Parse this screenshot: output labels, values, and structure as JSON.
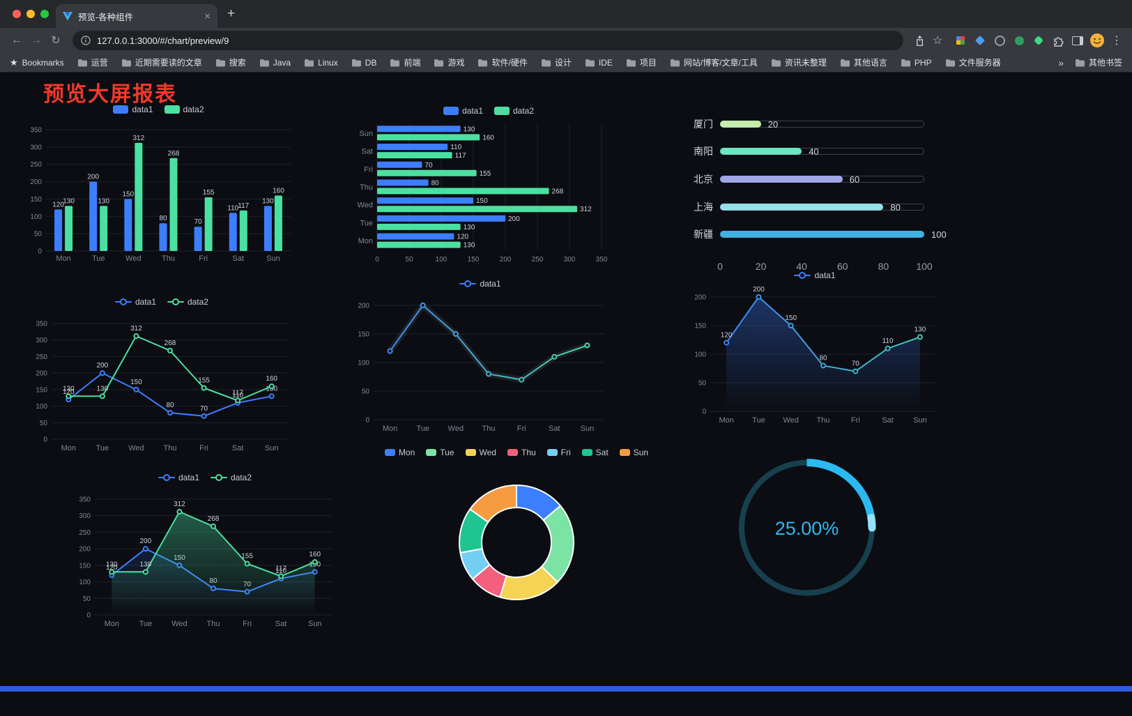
{
  "browser": {
    "tab": {
      "title": "预览-各种组件",
      "close_glyph": "×"
    },
    "url": "127.0.0.1:3000/#/chart/preview/9",
    "toolbar": {
      "back": "←",
      "forward": "→",
      "reload": "↻",
      "star": "☆",
      "kebab": "⋮",
      "new_tab": "+"
    },
    "bookmarks_label": "Bookmarks",
    "bookmarks": [
      "运营",
      "近期需要读的文章",
      "搜索",
      "Java",
      "Linux",
      "DB",
      "前端",
      "游戏",
      "软件/硬件",
      "设计",
      "IDE",
      "项目",
      "网站/博客/文章/工具",
      "资讯未整理",
      "其他语言",
      "PHP",
      "文件服务器"
    ],
    "bookmarks_overflow": "»",
    "other_bookmarks": "其他书签",
    "icons": {
      "bookmarks_star": "★"
    }
  },
  "page": {
    "title": "预览大屏报表",
    "title_color": "#ef3a2c"
  },
  "chart_data": [
    {
      "id": "grouped-bar",
      "type": "bar",
      "categories": [
        "Mon",
        "Tue",
        "Wed",
        "Thu",
        "Fri",
        "Sat",
        "Sun"
      ],
      "series": [
        {
          "name": "data1",
          "color": "#3D7EFF",
          "values": [
            120,
            200,
            150,
            80,
            70,
            110,
            130
          ]
        },
        {
          "name": "data2",
          "color": "#4BE0A1",
          "values": [
            130,
            130,
            312,
            268,
            155,
            117,
            160
          ]
        }
      ],
      "ylim": [
        0,
        350
      ],
      "yticks": [
        0,
        50,
        100,
        150,
        200,
        250,
        300,
        350
      ],
      "show_labels": true,
      "legend_position": "top"
    },
    {
      "id": "horizontal-bar",
      "type": "bar-horizontal",
      "categories": [
        "Mon",
        "Tue",
        "Wed",
        "Thu",
        "Fri",
        "Sat",
        "Sun"
      ],
      "series": [
        {
          "name": "data1",
          "color": "#3D7EFF",
          "values": [
            120,
            200,
            150,
            80,
            70,
            110,
            130
          ]
        },
        {
          "name": "data2",
          "color": "#4BE0A1",
          "values": [
            130,
            130,
            312,
            268,
            155,
            117,
            160
          ]
        }
      ],
      "xlim": [
        0,
        350
      ],
      "xticks": [
        0,
        50,
        100,
        150,
        200,
        250,
        300,
        350
      ],
      "show_labels": true,
      "legend_position": "top"
    },
    {
      "id": "city-progress",
      "type": "progress",
      "max": 100,
      "rows": [
        {
          "label": "厦门",
          "value": 20,
          "color": "#C4EBAD"
        },
        {
          "label": "南阳",
          "value": 40,
          "color": "#6BE6C1"
        },
        {
          "label": "北京",
          "value": 60,
          "color": "#A0A7E6"
        },
        {
          "label": "上海",
          "value": 80,
          "color": "#96DEE8"
        },
        {
          "label": "新疆",
          "value": 100,
          "color": "#3FB1E3"
        }
      ],
      "xticks": [
        0,
        20,
        40,
        60,
        80,
        100
      ]
    },
    {
      "id": "dual-line",
      "type": "line",
      "categories": [
        "Mon",
        "Tue",
        "Wed",
        "Thu",
        "Fri",
        "Sat",
        "Sun"
      ],
      "series": [
        {
          "name": "data1",
          "color": "#3D7EFF",
          "values": [
            120,
            200,
            150,
            80,
            70,
            110,
            130
          ]
        },
        {
          "name": "data2",
          "color": "#4BE0A1",
          "values": [
            130,
            130,
            312,
            268,
            155,
            117,
            160
          ]
        }
      ],
      "ylim": [
        0,
        350
      ],
      "yticks": [
        0,
        50,
        100,
        150,
        200,
        250,
        300,
        350
      ],
      "show_labels": true,
      "legend_position": "top"
    },
    {
      "id": "gradient-line",
      "type": "line",
      "categories": [
        "Mon",
        "Tue",
        "Wed",
        "Thu",
        "Fri",
        "Sat",
        "Sun"
      ],
      "series": [
        {
          "name": "data1",
          "gradient": [
            "#3D7EFF",
            "#4BE0A1"
          ],
          "shadow": true,
          "values": [
            120,
            200,
            150,
            80,
            70,
            110,
            130
          ]
        }
      ],
      "ylim": [
        0,
        200
      ],
      "yticks": [
        0,
        50,
        100,
        150,
        200
      ],
      "show_labels": false,
      "legend_position": "top"
    },
    {
      "id": "area-line",
      "type": "line",
      "categories": [
        "Mon",
        "Tue",
        "Wed",
        "Thu",
        "Fri",
        "Sat",
        "Sun"
      ],
      "series": [
        {
          "name": "data1",
          "gradient": [
            "#3D7EFF",
            "#3DD1B0"
          ],
          "area": true,
          "area_opacity": 0.35,
          "values": [
            120,
            200,
            150,
            80,
            70,
            110,
            130
          ]
        }
      ],
      "ylim": [
        0,
        200
      ],
      "yticks": [
        0,
        50,
        100,
        150,
        200
      ],
      "show_labels": true,
      "legend_position": "top"
    },
    {
      "id": "dual-line-area",
      "type": "line",
      "categories": [
        "Mon",
        "Tue",
        "Wed",
        "Thu",
        "Fri",
        "Sat",
        "Sun"
      ],
      "series": [
        {
          "name": "data1",
          "color": "#3D7EFF",
          "area": true,
          "area_opacity": 0.15,
          "values": [
            120,
            200,
            150,
            80,
            70,
            110,
            130
          ]
        },
        {
          "name": "data2",
          "color": "#4BE0A1",
          "area": true,
          "area_opacity": 0.38,
          "values": [
            130,
            130,
            312,
            268,
            155,
            117,
            160
          ]
        }
      ],
      "ylim": [
        0,
        350
      ],
      "yticks": [
        0,
        50,
        100,
        150,
        200,
        250,
        300,
        350
      ],
      "show_labels": true,
      "legend_position": "top"
    },
    {
      "id": "weekday-donut",
      "type": "pie",
      "inner_radius": 0.61,
      "slices": [
        {
          "label": "Mon",
          "value": 120,
          "color": "#3D7EFF"
        },
        {
          "label": "Tue",
          "value": 200,
          "color": "#7BE3A4"
        },
        {
          "label": "Wed",
          "value": 150,
          "color": "#F6D353"
        },
        {
          "label": "Thu",
          "value": 80,
          "color": "#F2607C"
        },
        {
          "label": "Fri",
          "value": 70,
          "color": "#74CFF2"
        },
        {
          "label": "Sat",
          "value": 110,
          "color": "#1FC48E"
        },
        {
          "label": "Sun",
          "value": 130,
          "color": "#F59B40"
        }
      ],
      "legend_position": "top"
    },
    {
      "id": "percent-gauge",
      "type": "gauge",
      "value": 25,
      "label": "25.00%",
      "color": "#2CB9F0",
      "tip_color": "#95E1FB",
      "track_color": "#17404E"
    }
  ]
}
